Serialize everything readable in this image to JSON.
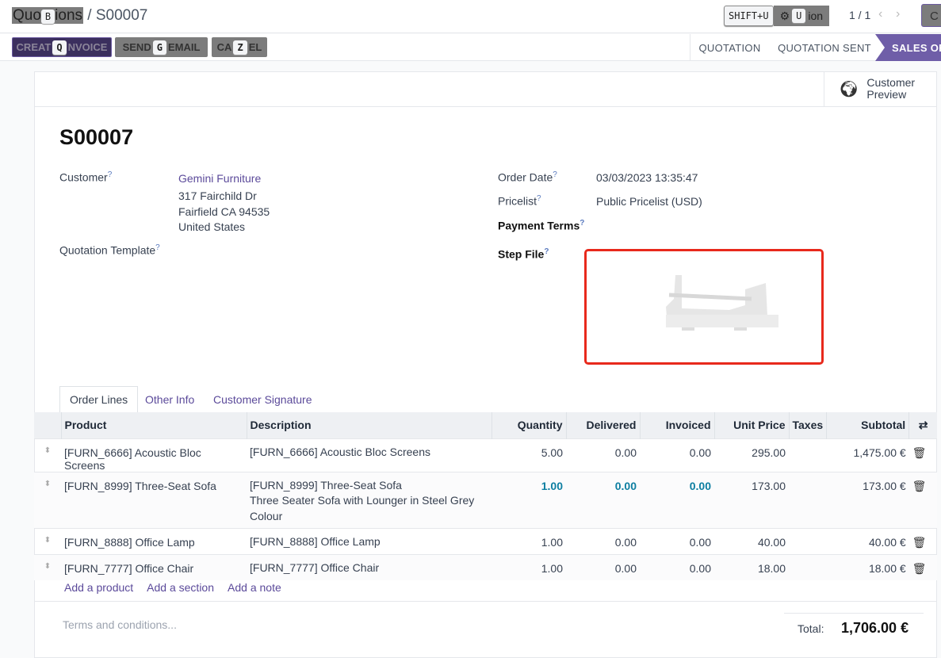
{
  "breadcrumb": {
    "parent": "Quotations",
    "parent_visible_start": "Quo",
    "parent_visible_end": "ions",
    "current": "S00007",
    "parent_hotkey": "B"
  },
  "toolbar": {
    "shift_hotkey": "SHIFT+U",
    "action_label": "Action",
    "action_visible": "ion",
    "action_hotkey": "U",
    "pager": "1 / 1",
    "create_partial": "C"
  },
  "buttons": {
    "create_invoice": {
      "pre": "CREAT",
      "post": "NVOICE",
      "hotkey": "Q"
    },
    "send_email": {
      "pre": "SEND",
      "post": "EMAIL",
      "hotkey": "G"
    },
    "cancel": {
      "pre": "CA",
      "post": "EL",
      "hotkey": "Z"
    }
  },
  "statusbar": [
    "QUOTATION",
    "QUOTATION SENT",
    "SALES ORDER"
  ],
  "active_status": "SALES ORDER",
  "customer_preview": [
    "Customer",
    "Preview"
  ],
  "record": {
    "name": "S00007",
    "customer_label": "Customer",
    "customer": "Gemini Furniture",
    "address": [
      "317 Fairchild Dr",
      "Fairfield CA 94535",
      "United States"
    ],
    "template_label": "Quotation Template",
    "order_date_label": "Order Date",
    "order_date": "03/03/2023 13:35:47",
    "pricelist_label": "Pricelist",
    "pricelist": "Public Pricelist (USD)",
    "payment_terms_label": "Payment Terms",
    "step_file_label": "Step File",
    "help": "?"
  },
  "tabs": [
    "Order Lines",
    "Other Info",
    "Customer Signature"
  ],
  "table": {
    "headers": [
      "Product",
      "Description",
      "Quantity",
      "Delivered",
      "Invoiced",
      "Unit Price",
      "Taxes",
      "Subtotal"
    ],
    "rows": [
      {
        "product": "[FURN_6666] Acoustic Bloc Screens",
        "desc": [
          "[FURN_6666] Acoustic Bloc Screens"
        ],
        "qty": "5.00",
        "delivered": "0.00",
        "invoiced": "0.00",
        "price": "295.00",
        "taxes": "",
        "subtotal": "1,475.00 €"
      },
      {
        "product": "[FURN_8999] Three-Seat Sofa",
        "desc": [
          "[FURN_8999] Three-Seat Sofa",
          "Three Seater Sofa with Lounger in Steel Grey",
          "Colour"
        ],
        "qty": "1.00",
        "delivered": "0.00",
        "invoiced": "0.00",
        "price": "173.00",
        "taxes": "",
        "subtotal": "173.00 €"
      },
      {
        "product": "[FURN_8888] Office Lamp",
        "desc": [
          "[FURN_8888] Office Lamp"
        ],
        "qty": "1.00",
        "delivered": "0.00",
        "invoiced": "0.00",
        "price": "40.00",
        "taxes": "",
        "subtotal": "40.00 €"
      },
      {
        "product": "[FURN_7777] Office Chair",
        "desc": [
          "[FURN_7777] Office Chair"
        ],
        "qty": "1.00",
        "delivered": "0.00",
        "invoiced": "0.00",
        "price": "18.00",
        "taxes": "",
        "subtotal": "18.00 €"
      }
    ],
    "add_links": [
      "Add a product",
      "Add a section",
      "Add a note"
    ]
  },
  "footer": {
    "terms_placeholder": "Terms and conditions...",
    "total_label": "Total:",
    "total": "1,706.00 €"
  },
  "colors": {
    "brand": "#714b9e",
    "status_active": "#6f5ea8",
    "highlight": "#0d7ea1",
    "step_border": "#e8291c"
  }
}
